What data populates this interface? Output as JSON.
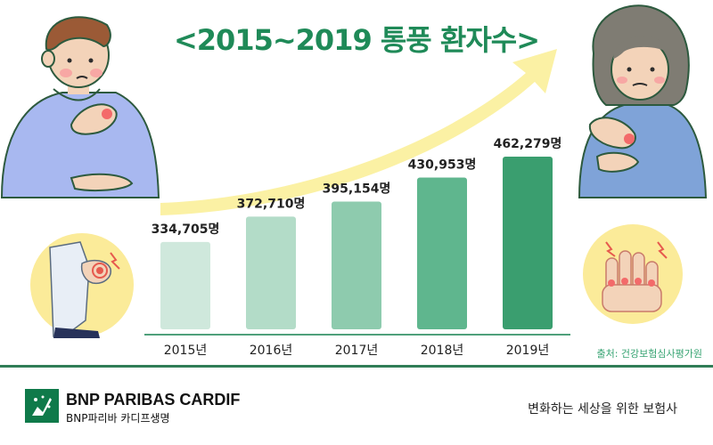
{
  "title": "<2015~2019 통풍 환자수>",
  "source": "출처: 건강보험심사평가원",
  "footer": {
    "brand_name": "BNP PARIBAS CARDIF",
    "brand_sub": "BNP파리바 카디프생명",
    "tagline": "변화하는 세상을 위한 보험사"
  },
  "colors": {
    "title": "#1f8a58",
    "arrow": "#fbf1a4",
    "bars": [
      "#cfe8dc",
      "#b3dcc8",
      "#8ecbae",
      "#5fb68e",
      "#3a9e6f"
    ],
    "brand": "#0f7a4a"
  },
  "chart_data": {
    "type": "bar",
    "title": "<2015~2019 통풍 환자수>",
    "categories": [
      "2015년",
      "2016년",
      "2017년",
      "2018년",
      "2019년"
    ],
    "values": [
      334705,
      372710,
      395154,
      430953,
      462279
    ],
    "value_labels": [
      "334,705명",
      "372,710명",
      "395,154명",
      "430,953명",
      "462,279명"
    ],
    "xlabel": "",
    "ylabel": "",
    "grid": false,
    "legend": "none"
  },
  "illustrations": {
    "left_person": "man-holding-wrist-icon",
    "right_person": "woman-holding-wrist-icon",
    "knee": "knee-pain-icon",
    "hand": "swollen-hand-icon",
    "arrow": "rising-arrow-icon"
  }
}
